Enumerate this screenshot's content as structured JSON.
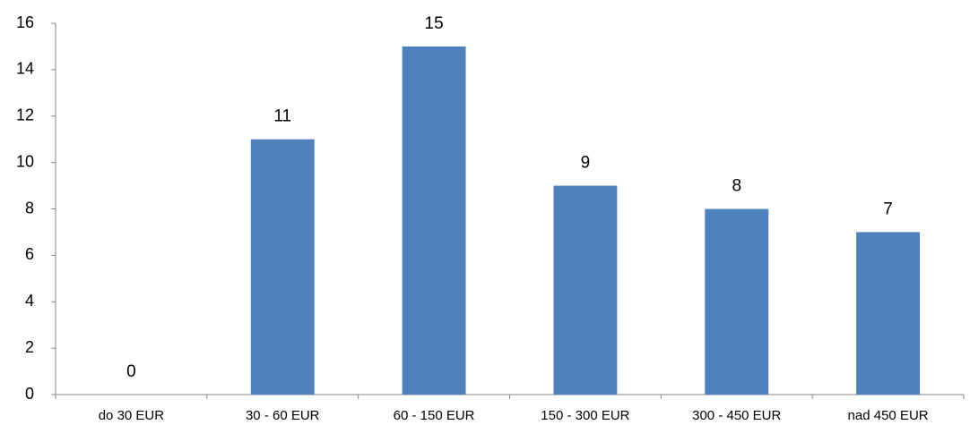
{
  "chart_data": {
    "type": "bar",
    "categories": [
      "do 30 EUR",
      "30 - 60 EUR",
      "60 - 150 EUR",
      "150 - 300 EUR",
      "300 - 450 EUR",
      "nad 450 EUR"
    ],
    "values": [
      0,
      11,
      15,
      9,
      8,
      7
    ],
    "color": "#4f81bd",
    "ylim": [
      0,
      16
    ],
    "yticks": [
      0,
      2,
      4,
      6,
      8,
      10,
      12,
      14,
      16
    ],
    "grid": false,
    "data_labels": true
  }
}
